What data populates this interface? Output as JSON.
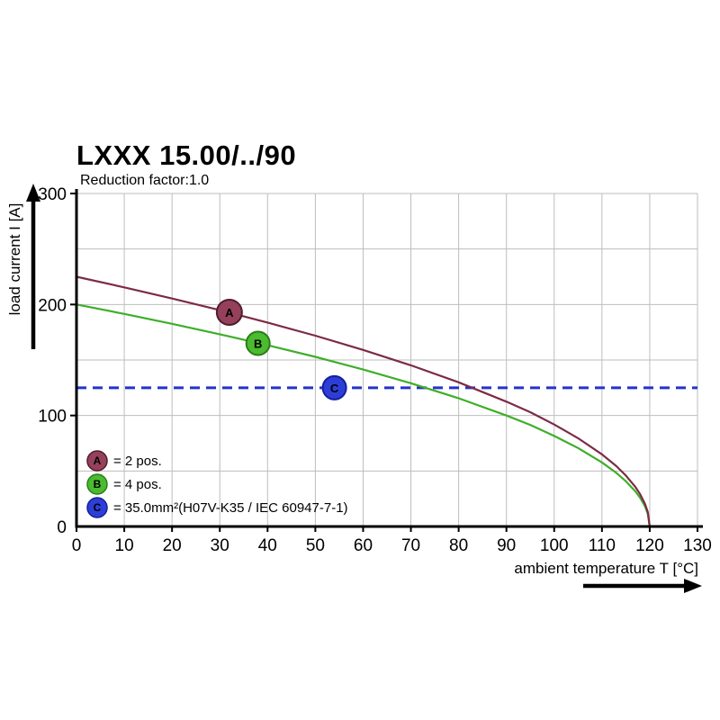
{
  "title": "LXXX 15.00/../90",
  "subtitle": "Reduction factor:1.0",
  "legend": {
    "items": [
      {
        "id": "A",
        "text": "= 2 pos."
      },
      {
        "id": "B",
        "text": "= 4 pos."
      },
      {
        "id": "C",
        "text": "= 35.0mm²(H07V-K35 / IEC 60947-7-1)"
      }
    ]
  },
  "chart_data": {
    "type": "line",
    "title": "LXXX 15.00/../90",
    "subtitle": "Reduction factor:1.0",
    "xlabel": "ambient temperature T [°C]",
    "ylabel": "load current I [A]",
    "xlim": [
      0,
      130
    ],
    "ylim": [
      0,
      300
    ],
    "x_ticks": [
      0,
      10,
      20,
      30,
      40,
      50,
      60,
      70,
      80,
      90,
      100,
      110,
      120,
      130
    ],
    "y_ticks": [
      0,
      100,
      200,
      300
    ],
    "y_gridlines": [
      50,
      100,
      150,
      200,
      250,
      300
    ],
    "grid": true,
    "grid_color": "#bdbdbd",
    "legend_position": "lower-left",
    "series": [
      {
        "id": "A",
        "name": "A = 2 pos.",
        "type": "curve",
        "color": "#7d2b45",
        "marker_fill": "#95415b",
        "marker_stroke": "#521c2e",
        "points": [
          [
            0,
            225
          ],
          [
            10,
            215.4
          ],
          [
            20,
            205.4
          ],
          [
            30,
            194.9
          ],
          [
            40,
            183.7
          ],
          [
            50,
            171.9
          ],
          [
            60,
            159.1
          ],
          [
            70,
            145.2
          ],
          [
            80,
            129.9
          ],
          [
            90,
            112.5
          ],
          [
            95,
            103.0
          ],
          [
            100,
            91.9
          ],
          [
            105,
            79.5
          ],
          [
            110,
            65.0
          ],
          [
            113,
            54.4
          ],
          [
            115,
            45.9
          ],
          [
            117,
            35.6
          ],
          [
            118,
            29.0
          ],
          [
            119,
            20.5
          ],
          [
            119.6,
            13.0
          ],
          [
            120,
            0
          ]
        ],
        "marker": {
          "x": 32,
          "y": 193,
          "r": 14,
          "label": "A"
        }
      },
      {
        "id": "B",
        "name": "B = 4 pos.",
        "type": "curve",
        "color": "#3fae2a",
        "marker_fill": "#4bbb2f",
        "marker_stroke": "#2b7d19",
        "points": [
          [
            0,
            200
          ],
          [
            10,
            191.5
          ],
          [
            20,
            182.6
          ],
          [
            30,
            173.2
          ],
          [
            40,
            163.3
          ],
          [
            50,
            152.8
          ],
          [
            60,
            141.4
          ],
          [
            70,
            129.1
          ],
          [
            80,
            115.5
          ],
          [
            90,
            100.0
          ],
          [
            95,
            91.5
          ],
          [
            100,
            81.6
          ],
          [
            105,
            70.7
          ],
          [
            110,
            57.7
          ],
          [
            113,
            48.3
          ],
          [
            115,
            40.8
          ],
          [
            117,
            31.6
          ],
          [
            118,
            25.8
          ],
          [
            119,
            18.3
          ],
          [
            119.6,
            11.5
          ],
          [
            120,
            0
          ]
        ],
        "marker": {
          "x": 38,
          "y": 165,
          "r": 13,
          "label": "B"
        }
      },
      {
        "id": "C",
        "name": "C = 35.0mm²(H07V-K35 / IEC 60947-7-1)",
        "type": "hline",
        "y": 125,
        "dashed": true,
        "color": "#2433cf",
        "marker_fill": "#2d3ed8",
        "marker_stroke": "#141f97",
        "marker": {
          "x": 54,
          "y": 125,
          "r": 13,
          "label": "C"
        }
      }
    ]
  }
}
